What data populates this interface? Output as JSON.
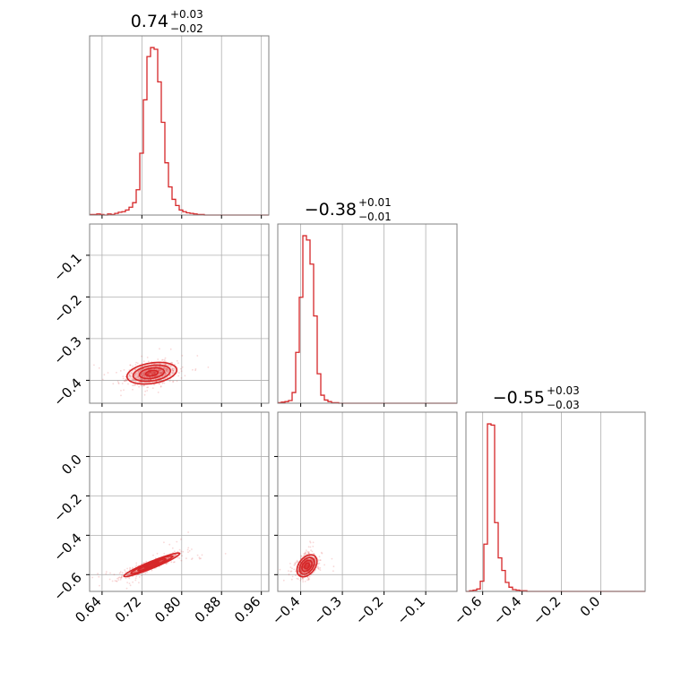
{
  "chart_data": {
    "type": "corner",
    "params": [
      {
        "name": "",
        "title": {
          "value": "0.74",
          "plus": "+0.03",
          "minus": "−0.02"
        },
        "range": [
          0.615,
          0.975
        ],
        "ticks": [
          0.64,
          0.72,
          0.8,
          0.88,
          0.96
        ],
        "tick_labels": [
          "0.64",
          "0.72",
          "0.80",
          "0.88",
          "0.96"
        ]
      },
      {
        "name": "",
        "title": {
          "value": "−0.38",
          "plus": "+0.01",
          "minus": "−0.01"
        },
        "range": [
          -0.455,
          -0.025
        ],
        "ticks": [
          -0.4,
          -0.3,
          -0.2,
          -0.1
        ],
        "tick_labels": [
          "−0.4",
          "−0.3",
          "−0.2",
          "−0.1"
        ]
      },
      {
        "name": "",
        "title": {
          "value": "−0.55",
          "plus": "+0.03",
          "minus": "−0.03"
        },
        "range": [
          -0.685,
          0.225
        ],
        "ticks": [
          -0.6,
          -0.4,
          -0.2,
          0.0
        ],
        "tick_labels": [
          "−0.6",
          "−0.4",
          "−0.2",
          "0.0"
        ]
      }
    ],
    "histograms": [
      {
        "param": 0,
        "bin_edges": [
          0.615,
          0.975
        ],
        "nbins": 50,
        "counts": [
          1,
          1,
          2,
          1,
          0,
          2,
          1,
          3,
          5,
          6,
          9,
          14,
          22,
          45,
          110,
          205,
          282,
          298,
          295,
          237,
          165,
          93,
          50,
          28,
          17,
          9,
          6,
          4,
          3,
          2,
          1,
          1,
          0,
          0,
          0,
          0,
          0,
          0,
          0,
          0,
          0,
          0,
          0,
          0,
          0,
          0,
          0,
          0,
          0,
          0
        ]
      },
      {
        "param": 1,
        "bin_edges": [
          -0.455,
          -0.025
        ],
        "nbins": 50,
        "counts": [
          1,
          2,
          3,
          5,
          20,
          95,
          198,
          313,
          305,
          260,
          163,
          55,
          15,
          6,
          3,
          1,
          1,
          0,
          0,
          0,
          0,
          0,
          0,
          0,
          0,
          0,
          0,
          0,
          0,
          0,
          0,
          0,
          0,
          0,
          0,
          0,
          0,
          0,
          0,
          0,
          0,
          0,
          0,
          0,
          0,
          0,
          0,
          0,
          0,
          0
        ]
      },
      {
        "param": 2,
        "bin_edges": [
          -0.685,
          0.225
        ],
        "nbins": 50,
        "counts": [
          0,
          1,
          2,
          4,
          17,
          79,
          280,
          278,
          115,
          56,
          35,
          15,
          7,
          3,
          2,
          1,
          1,
          0,
          0,
          0,
          0,
          0,
          0,
          0,
          0,
          0,
          0,
          0,
          0,
          0,
          0,
          0,
          0,
          0,
          0,
          0,
          0,
          0,
          0,
          0,
          0,
          0,
          0,
          0,
          0,
          0,
          0,
          0,
          0,
          0
        ]
      }
    ],
    "joint": [
      {
        "x_param": 0,
        "y_param": 1,
        "center": [
          0.74,
          -0.383
        ],
        "sigma": [
          0.025,
          0.013
        ],
        "correlation": 0.3
      },
      {
        "x_param": 0,
        "y_param": 2,
        "center": [
          0.74,
          -0.55
        ],
        "sigma": [
          0.028,
          0.03
        ],
        "correlation": 0.95
      },
      {
        "x_param": 1,
        "y_param": 2,
        "center": [
          -0.385,
          -0.555
        ],
        "sigma": [
          0.012,
          0.028
        ],
        "correlation": 0.4
      }
    ],
    "contour_levels_sigma": [
      0.5,
      1.0,
      1.5,
      2.0
    ],
    "grid": true,
    "color": "#d62728",
    "frame_color": "#808080",
    "grid_color": "#b0b0b0"
  }
}
